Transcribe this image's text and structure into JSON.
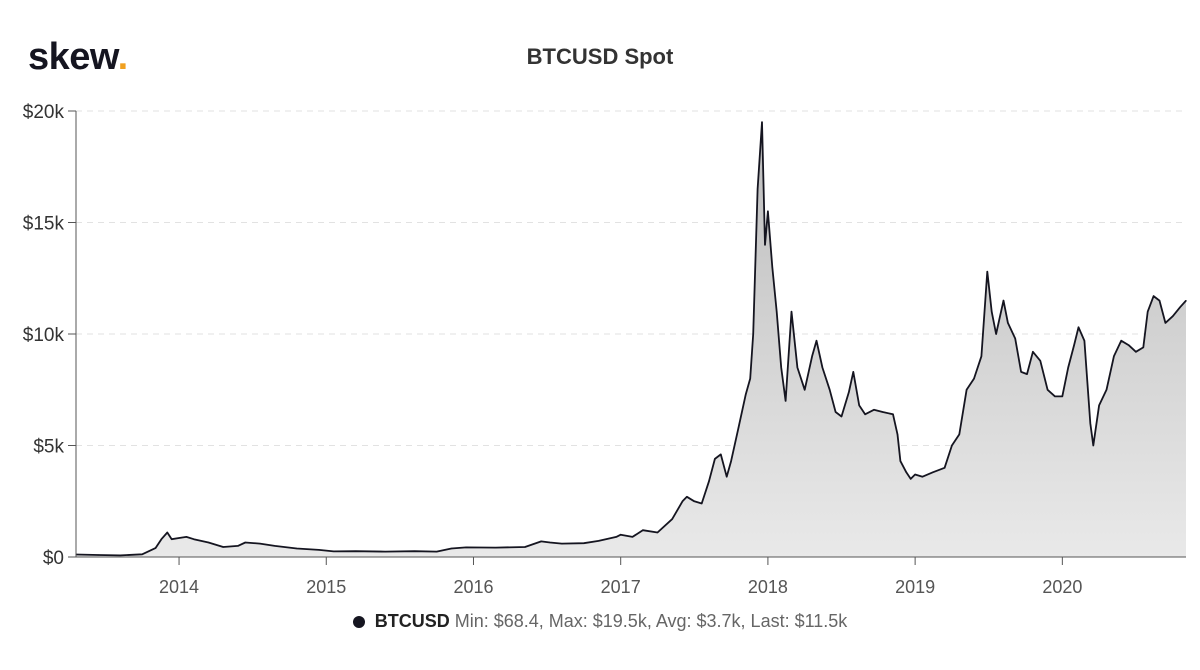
{
  "brand": {
    "name": "skew",
    "dot": "."
  },
  "chart_data": {
    "type": "area",
    "title": "BTCUSD Spot",
    "xlabel": "",
    "ylabel": "",
    "y_ticks": [
      "$0",
      "$5k",
      "$10k",
      "$15k",
      "$20k"
    ],
    "y_tick_values": [
      0,
      5000,
      10000,
      15000,
      20000
    ],
    "x_ticks": [
      "2014",
      "2015",
      "2016",
      "2017",
      "2018",
      "2019",
      "2020"
    ],
    "x_range": [
      2013.3,
      2020.84
    ],
    "ylim": [
      0,
      20000
    ],
    "grid": "horizontal dashed",
    "legend_position": "bottom-center",
    "series": [
      {
        "name": "BTCUSD",
        "color": "#151520",
        "fill": "#d7d7d7",
        "points": [
          [
            2013.3,
            110
          ],
          [
            2013.45,
            90
          ],
          [
            2013.6,
            70
          ],
          [
            2013.75,
            120
          ],
          [
            2013.84,
            400
          ],
          [
            2013.88,
            800
          ],
          [
            2013.92,
            1100
          ],
          [
            2013.95,
            800
          ],
          [
            2014.0,
            850
          ],
          [
            2014.05,
            900
          ],
          [
            2014.1,
            800
          ],
          [
            2014.2,
            650
          ],
          [
            2014.3,
            450
          ],
          [
            2014.4,
            500
          ],
          [
            2014.45,
            650
          ],
          [
            2014.55,
            600
          ],
          [
            2014.65,
            500
          ],
          [
            2014.8,
            380
          ],
          [
            2014.95,
            320
          ],
          [
            2015.05,
            250
          ],
          [
            2015.2,
            260
          ],
          [
            2015.4,
            240
          ],
          [
            2015.6,
            260
          ],
          [
            2015.75,
            240
          ],
          [
            2015.85,
            380
          ],
          [
            2015.95,
            430
          ],
          [
            2016.15,
            420
          ],
          [
            2016.35,
            450
          ],
          [
            2016.46,
            700
          ],
          [
            2016.52,
            650
          ],
          [
            2016.6,
            600
          ],
          [
            2016.75,
            620
          ],
          [
            2016.85,
            720
          ],
          [
            2016.97,
            900
          ],
          [
            2017.0,
            1000
          ],
          [
            2017.08,
            900
          ],
          [
            2017.15,
            1200
          ],
          [
            2017.25,
            1100
          ],
          [
            2017.35,
            1700
          ],
          [
            2017.42,
            2500
          ],
          [
            2017.45,
            2700
          ],
          [
            2017.5,
            2500
          ],
          [
            2017.55,
            2400
          ],
          [
            2017.6,
            3400
          ],
          [
            2017.64,
            4400
          ],
          [
            2017.68,
            4600
          ],
          [
            2017.72,
            3600
          ],
          [
            2017.75,
            4300
          ],
          [
            2017.8,
            5800
          ],
          [
            2017.85,
            7300
          ],
          [
            2017.88,
            8000
          ],
          [
            2017.9,
            10000
          ],
          [
            2017.93,
            16500
          ],
          [
            2017.96,
            19500
          ],
          [
            2017.98,
            14000
          ],
          [
            2018.0,
            15500
          ],
          [
            2018.03,
            13000
          ],
          [
            2018.06,
            11000
          ],
          [
            2018.09,
            8500
          ],
          [
            2018.12,
            7000
          ],
          [
            2018.16,
            11000
          ],
          [
            2018.2,
            8500
          ],
          [
            2018.25,
            7500
          ],
          [
            2018.3,
            9000
          ],
          [
            2018.33,
            9700
          ],
          [
            2018.37,
            8500
          ],
          [
            2018.42,
            7500
          ],
          [
            2018.46,
            6500
          ],
          [
            2018.5,
            6300
          ],
          [
            2018.55,
            7400
          ],
          [
            2018.58,
            8300
          ],
          [
            2018.62,
            6800
          ],
          [
            2018.66,
            6400
          ],
          [
            2018.72,
            6600
          ],
          [
            2018.78,
            6500
          ],
          [
            2018.85,
            6400
          ],
          [
            2018.88,
            5500
          ],
          [
            2018.9,
            4300
          ],
          [
            2018.94,
            3800
          ],
          [
            2018.97,
            3500
          ],
          [
            2019.0,
            3700
          ],
          [
            2019.05,
            3600
          ],
          [
            2019.12,
            3800
          ],
          [
            2019.2,
            4000
          ],
          [
            2019.25,
            5000
          ],
          [
            2019.3,
            5500
          ],
          [
            2019.35,
            7500
          ],
          [
            2019.4,
            8000
          ],
          [
            2019.45,
            9000
          ],
          [
            2019.49,
            12800
          ],
          [
            2019.52,
            11000
          ],
          [
            2019.55,
            10000
          ],
          [
            2019.6,
            11500
          ],
          [
            2019.63,
            10500
          ],
          [
            2019.68,
            9800
          ],
          [
            2019.72,
            8300
          ],
          [
            2019.76,
            8200
          ],
          [
            2019.8,
            9200
          ],
          [
            2019.85,
            8800
          ],
          [
            2019.9,
            7500
          ],
          [
            2019.95,
            7200
          ],
          [
            2020.0,
            7200
          ],
          [
            2020.04,
            8500
          ],
          [
            2020.08,
            9500
          ],
          [
            2020.11,
            10300
          ],
          [
            2020.15,
            9700
          ],
          [
            2020.19,
            6000
          ],
          [
            2020.21,
            5000
          ],
          [
            2020.25,
            6800
          ],
          [
            2020.3,
            7500
          ],
          [
            2020.35,
            9000
          ],
          [
            2020.4,
            9700
          ],
          [
            2020.45,
            9500
          ],
          [
            2020.5,
            9200
          ],
          [
            2020.55,
            9400
          ],
          [
            2020.58,
            11000
          ],
          [
            2020.62,
            11700
          ],
          [
            2020.66,
            11500
          ],
          [
            2020.7,
            10500
          ],
          [
            2020.75,
            10800
          ],
          [
            2020.8,
            11200
          ],
          [
            2020.84,
            11500
          ]
        ]
      }
    ],
    "legend": {
      "name": "BTCUSD",
      "stats": "Min: $68.4, Max: $19.5k, Avg: $3.7k, Last: $11.5k"
    }
  }
}
